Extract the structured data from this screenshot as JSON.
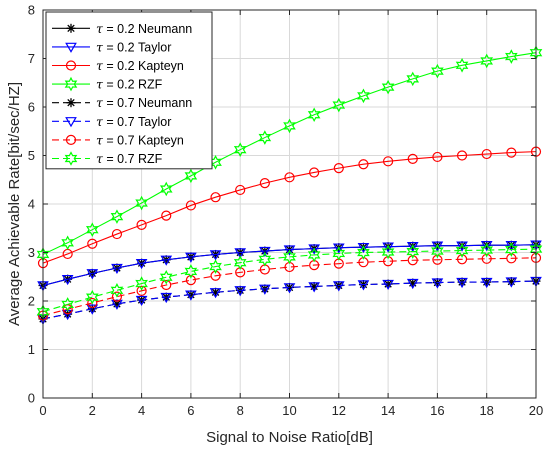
{
  "chart_data": {
    "type": "line",
    "xlabel": "Signal to Noise Ratio[dB]",
    "ylabel": "Average Achievable Rate[bit/sec/HZ]",
    "xlim": [
      0,
      20
    ],
    "ylim": [
      0,
      8
    ],
    "xticks": [
      "0",
      "2",
      "4",
      "6",
      "8",
      "10",
      "12",
      "14",
      "16",
      "18",
      "20"
    ],
    "yticks": [
      "0",
      "1",
      "2",
      "3",
      "4",
      "5",
      "6",
      "7",
      "8"
    ],
    "grid": true,
    "legend_position": "top-left",
    "x": [
      0,
      1,
      2,
      3,
      4,
      5,
      6,
      7,
      8,
      9,
      10,
      11,
      12,
      13,
      14,
      15,
      16,
      17,
      18,
      19,
      20
    ],
    "series": [
      {
        "name": "= 0.2 Neumann",
        "tau": "τ",
        "color": "#000000",
        "marker": "asterisk",
        "dash": "solid",
        "values": [
          2.32,
          2.45,
          2.57,
          2.68,
          2.78,
          2.85,
          2.91,
          2.96,
          3.0,
          3.03,
          3.06,
          3.08,
          3.1,
          3.11,
          3.12,
          3.13,
          3.14,
          3.14,
          3.15,
          3.15,
          3.16
        ]
      },
      {
        "name": "= 0.2 Taylor",
        "tau": "τ",
        "color": "#0000ff",
        "marker": "triangle-down",
        "dash": "solid",
        "values": [
          2.32,
          2.45,
          2.57,
          2.68,
          2.78,
          2.85,
          2.91,
          2.96,
          3.0,
          3.03,
          3.06,
          3.08,
          3.1,
          3.11,
          3.12,
          3.13,
          3.14,
          3.14,
          3.15,
          3.15,
          3.16
        ]
      },
      {
        "name": "= 0.2 Kapteyn",
        "tau": "τ",
        "color": "#ff0000",
        "marker": "circle",
        "dash": "solid",
        "values": [
          2.78,
          2.97,
          3.18,
          3.38,
          3.57,
          3.76,
          3.97,
          4.14,
          4.29,
          4.43,
          4.55,
          4.65,
          4.74,
          4.82,
          4.88,
          4.93,
          4.97,
          5.0,
          5.03,
          5.06,
          5.08
        ]
      },
      {
        "name": "= 0.2 RZF",
        "tau": "τ",
        "color": "#00ff00",
        "marker": "hexagram",
        "dash": "solid",
        "values": [
          2.96,
          3.2,
          3.47,
          3.74,
          4.02,
          4.31,
          4.58,
          4.86,
          5.12,
          5.37,
          5.61,
          5.84,
          6.04,
          6.23,
          6.41,
          6.58,
          6.74,
          6.86,
          6.95,
          7.04,
          7.12
        ]
      },
      {
        "name": "= 0.7 Neumann",
        "tau": "τ",
        "color": "#000000",
        "marker": "asterisk",
        "dash": "dashed",
        "values": [
          1.63,
          1.73,
          1.84,
          1.94,
          2.02,
          2.08,
          2.13,
          2.18,
          2.22,
          2.25,
          2.28,
          2.3,
          2.32,
          2.34,
          2.35,
          2.37,
          2.38,
          2.39,
          2.39,
          2.4,
          2.41
        ]
      },
      {
        "name": "= 0.7 Taylor",
        "tau": "τ",
        "color": "#0000ff",
        "marker": "triangle-down",
        "dash": "dashed",
        "values": [
          1.63,
          1.73,
          1.84,
          1.94,
          2.02,
          2.08,
          2.13,
          2.18,
          2.22,
          2.25,
          2.28,
          2.3,
          2.32,
          2.34,
          2.35,
          2.37,
          2.38,
          2.39,
          2.39,
          2.4,
          2.41
        ]
      },
      {
        "name": "= 0.7 Kapteyn",
        "tau": "τ",
        "color": "#ff0000",
        "marker": "circle",
        "dash": "dashed",
        "values": [
          1.7,
          1.83,
          1.96,
          2.09,
          2.21,
          2.33,
          2.43,
          2.52,
          2.59,
          2.65,
          2.7,
          2.74,
          2.77,
          2.8,
          2.82,
          2.84,
          2.85,
          2.86,
          2.87,
          2.88,
          2.89
        ]
      },
      {
        "name": "= 0.7 RZF",
        "tau": "τ",
        "color": "#00ff00",
        "marker": "hexagram",
        "dash": "dashed",
        "values": [
          1.78,
          1.93,
          2.08,
          2.22,
          2.36,
          2.49,
          2.61,
          2.71,
          2.79,
          2.86,
          2.91,
          2.95,
          2.98,
          3.0,
          3.01,
          3.02,
          3.03,
          3.04,
          3.05,
          3.06,
          3.07
        ]
      }
    ]
  }
}
